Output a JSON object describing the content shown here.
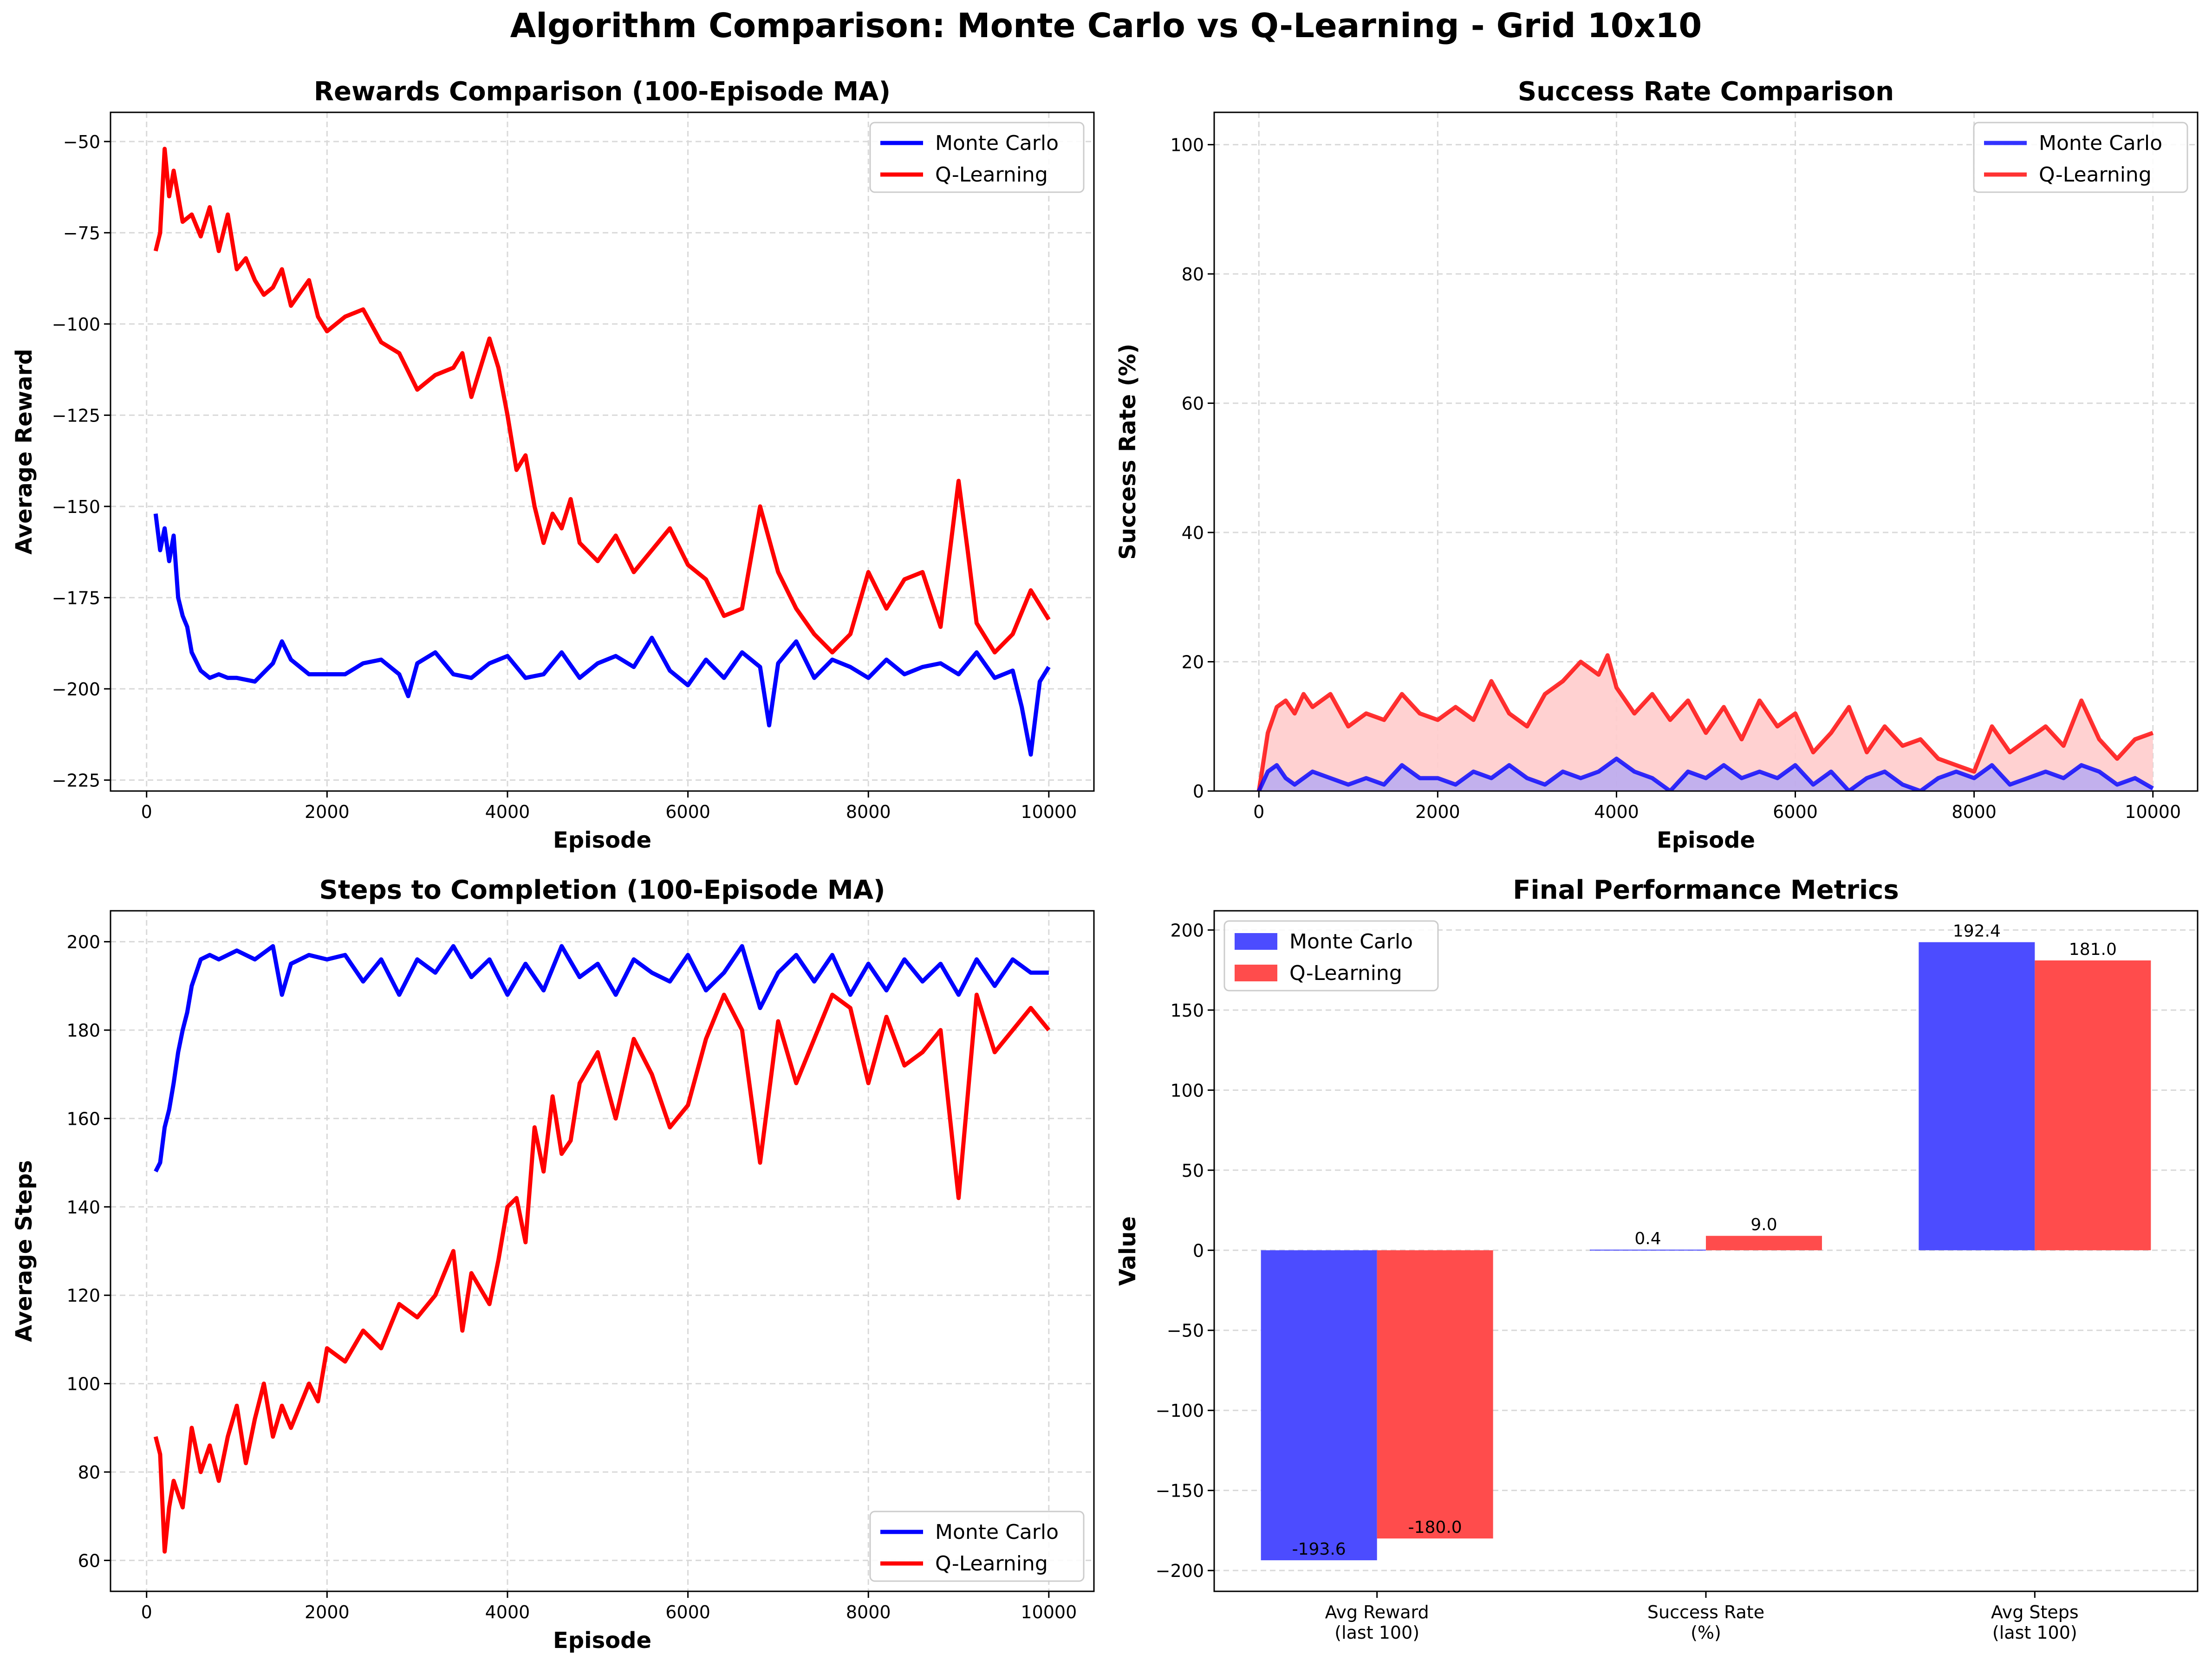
{
  "suptitle": "Algorithm Comparison: Monte Carlo vs Q-Learning - Grid 10x10",
  "colors": {
    "monte_carlo": "#0000ff",
    "q_learning": "#ff0000",
    "grid": "#d9d9d9",
    "fill_q": "#ffcccc",
    "fill_mc": "#9999ff"
  },
  "chart_data": [
    {
      "type": "line",
      "title": "Rewards Comparison (100-Episode MA)",
      "xlabel": "Episode",
      "ylabel": "Average Reward",
      "xlim": [
        -400,
        10500
      ],
      "ylim": [
        -228,
        -42
      ],
      "xticks": [
        0,
        2000,
        4000,
        6000,
        8000,
        10000
      ],
      "yticks": [
        -225,
        -200,
        -175,
        -150,
        -125,
        -100,
        -75,
        -50
      ],
      "ytick_labels": [
        "−225",
        "−200",
        "−175",
        "−150",
        "−125",
        "−100",
        "−75",
        "−50"
      ],
      "grid": true,
      "legend": "top-right",
      "series": [
        {
          "name": "Monte Carlo",
          "color": "#0000ff",
          "x": [
            100,
            150,
            200,
            250,
            300,
            350,
            400,
            450,
            500,
            600,
            700,
            800,
            900,
            1000,
            1200,
            1400,
            1500,
            1600,
            1800,
            2000,
            2200,
            2400,
            2600,
            2800,
            2900,
            3000,
            3200,
            3400,
            3600,
            3800,
            4000,
            4200,
            4400,
            4600,
            4800,
            5000,
            5200,
            5400,
            5600,
            5800,
            6000,
            6200,
            6400,
            6600,
            6800,
            6900,
            7000,
            7200,
            7400,
            7600,
            7800,
            8000,
            8200,
            8400,
            8600,
            8800,
            9000,
            9200,
            9400,
            9600,
            9700,
            9800,
            9900,
            10000
          ],
          "values": [
            -152,
            -162,
            -156,
            -165,
            -158,
            -175,
            -180,
            -183,
            -190,
            -195,
            -197,
            -196,
            -197,
            -197,
            -198,
            -193,
            -187,
            -192,
            -196,
            -196,
            -196,
            -193,
            -192,
            -196,
            -202,
            -193,
            -190,
            -196,
            -197,
            -193,
            -191,
            -197,
            -196,
            -190,
            -197,
            -193,
            -191,
            -194,
            -186,
            -195,
            -199,
            -192,
            -197,
            -190,
            -194,
            -210,
            -193,
            -187,
            -197,
            -192,
            -194,
            -197,
            -192,
            -196,
            -194,
            -193,
            -196,
            -190,
            -197,
            -195,
            -205,
            -218,
            -198,
            -194
          ]
        },
        {
          "name": "Q-Learning",
          "color": "#ff0000",
          "x": [
            100,
            150,
            200,
            250,
            300,
            400,
            500,
            600,
            700,
            800,
            900,
            1000,
            1100,
            1200,
            1300,
            1400,
            1500,
            1600,
            1800,
            1900,
            2000,
            2200,
            2400,
            2600,
            2800,
            3000,
            3200,
            3400,
            3500,
            3600,
            3800,
            3900,
            4000,
            4100,
            4200,
            4300,
            4400,
            4500,
            4600,
            4700,
            4800,
            5000,
            5200,
            5400,
            5600,
            5800,
            6000,
            6200,
            6400,
            6600,
            6800,
            7000,
            7200,
            7400,
            7600,
            7800,
            8000,
            8200,
            8400,
            8600,
            8800,
            9000,
            9100,
            9200,
            9400,
            9600,
            9800,
            10000
          ],
          "values": [
            -80,
            -75,
            -52,
            -65,
            -58,
            -72,
            -70,
            -76,
            -68,
            -80,
            -70,
            -85,
            -82,
            -88,
            -92,
            -90,
            -85,
            -95,
            -88,
            -98,
            -102,
            -98,
            -96,
            -105,
            -108,
            -118,
            -114,
            -112,
            -108,
            -120,
            -104,
            -112,
            -125,
            -140,
            -136,
            -150,
            -160,
            -152,
            -156,
            -148,
            -160,
            -165,
            -158,
            -168,
            -162,
            -156,
            -166,
            -170,
            -180,
            -178,
            -150,
            -168,
            -178,
            -185,
            -190,
            -185,
            -168,
            -178,
            -170,
            -168,
            -183,
            -143,
            -162,
            -182,
            -190,
            -185,
            -173,
            -181
          ]
        }
      ]
    },
    {
      "type": "area",
      "title": "Success Rate Comparison",
      "xlabel": "Episode",
      "ylabel": "Success Rate (%)",
      "xlim": [
        -500,
        10500
      ],
      "ylim": [
        0,
        105
      ],
      "xticks": [
        0,
        2000,
        4000,
        6000,
        8000,
        10000
      ],
      "yticks": [
        0,
        20,
        40,
        60,
        80,
        100
      ],
      "ytick_labels": [
        "0",
        "20",
        "40",
        "60",
        "80",
        "100"
      ],
      "grid": true,
      "legend": "top-right",
      "series": [
        {
          "name": "Monte Carlo",
          "color": "#0000ff",
          "x": [
            0,
            100,
            200,
            300,
            400,
            600,
            800,
            1000,
            1200,
            1400,
            1600,
            1800,
            2000,
            2200,
            2400,
            2600,
            2800,
            3000,
            3200,
            3400,
            3600,
            3800,
            4000,
            4200,
            4400,
            4600,
            4800,
            5000,
            5200,
            5400,
            5600,
            5800,
            6000,
            6200,
            6400,
            6600,
            6800,
            7000,
            7200,
            7400,
            7600,
            7800,
            8000,
            8200,
            8400,
            8600,
            8800,
            9000,
            9200,
            9400,
            9600,
            9800,
            10000
          ],
          "values": [
            0,
            3,
            4,
            2,
            1,
            3,
            2,
            1,
            2,
            1,
            4,
            2,
            2,
            1,
            3,
            2,
            4,
            2,
            1,
            3,
            2,
            3,
            5,
            3,
            2,
            0,
            3,
            2,
            4,
            2,
            3,
            2,
            4,
            1,
            3,
            0,
            2,
            3,
            1,
            0,
            2,
            3,
            2,
            4,
            1,
            2,
            3,
            2,
            4,
            3,
            1,
            2,
            0.4
          ]
        },
        {
          "name": "Q-Learning",
          "color": "#ff0000",
          "x": [
            0,
            100,
            150,
            200,
            300,
            400,
            500,
            600,
            800,
            1000,
            1200,
            1400,
            1600,
            1800,
            2000,
            2200,
            2400,
            2600,
            2800,
            3000,
            3200,
            3400,
            3600,
            3800,
            3900,
            4000,
            4200,
            4400,
            4600,
            4800,
            5000,
            5200,
            5400,
            5600,
            5800,
            6000,
            6200,
            6400,
            6600,
            6800,
            7000,
            7200,
            7400,
            7600,
            7800,
            8000,
            8200,
            8400,
            8600,
            8800,
            9000,
            9200,
            9400,
            9600,
            9800,
            10000
          ],
          "values": [
            0,
            9,
            11,
            13,
            14,
            12,
            15,
            13,
            15,
            10,
            12,
            11,
            15,
            12,
            11,
            13,
            11,
            17,
            12,
            10,
            15,
            17,
            20,
            18,
            21,
            16,
            12,
            15,
            11,
            14,
            9,
            13,
            8,
            14,
            10,
            12,
            6,
            9,
            13,
            6,
            10,
            7,
            8,
            5,
            4,
            3,
            10,
            6,
            8,
            10,
            7,
            14,
            8,
            5,
            8,
            9
          ]
        }
      ]
    },
    {
      "type": "line",
      "title": "Steps to Completion (100-Episode MA)",
      "xlabel": "Episode",
      "ylabel": "Average Steps",
      "xlim": [
        -400,
        10500
      ],
      "ylim": [
        53,
        207
      ],
      "xticks": [
        0,
        2000,
        4000,
        6000,
        8000,
        10000
      ],
      "yticks": [
        60,
        80,
        100,
        120,
        140,
        160,
        180,
        200
      ],
      "ytick_labels": [
        "60",
        "80",
        "100",
        "120",
        "140",
        "160",
        "180",
        "200"
      ],
      "grid": true,
      "legend": "bottom-right",
      "series": [
        {
          "name": "Monte Carlo",
          "color": "#0000ff",
          "x": [
            100,
            150,
            200,
            250,
            300,
            350,
            400,
            450,
            500,
            600,
            700,
            800,
            1000,
            1200,
            1400,
            1500,
            1600,
            1800,
            2000,
            2200,
            2400,
            2600,
            2800,
            3000,
            3200,
            3400,
            3600,
            3800,
            4000,
            4200,
            4400,
            4600,
            4800,
            5000,
            5200,
            5400,
            5600,
            5800,
            6000,
            6200,
            6400,
            6600,
            6800,
            7000,
            7200,
            7400,
            7600,
            7800,
            8000,
            8200,
            8400,
            8600,
            8800,
            9000,
            9200,
            9400,
            9600,
            9800,
            10000
          ],
          "values": [
            148,
            150,
            158,
            162,
            168,
            175,
            180,
            184,
            190,
            196,
            197,
            196,
            198,
            196,
            199,
            188,
            195,
            197,
            196,
            197,
            191,
            196,
            188,
            196,
            193,
            199,
            192,
            196,
            188,
            195,
            189,
            199,
            192,
            195,
            188,
            196,
            193,
            191,
            197,
            189,
            193,
            199,
            185,
            193,
            197,
            191,
            197,
            188,
            195,
            189,
            196,
            191,
            195,
            188,
            196,
            190,
            196,
            193,
            193
          ]
        },
        {
          "name": "Q-Learning",
          "color": "#ff0000",
          "x": [
            100,
            150,
            200,
            250,
            300,
            400,
            500,
            600,
            700,
            800,
            900,
            1000,
            1100,
            1200,
            1300,
            1400,
            1500,
            1600,
            1800,
            1900,
            2000,
            2200,
            2400,
            2600,
            2800,
            3000,
            3200,
            3400,
            3500,
            3600,
            3800,
            3900,
            4000,
            4100,
            4200,
            4300,
            4400,
            4500,
            4600,
            4700,
            4800,
            5000,
            5200,
            5400,
            5600,
            5800,
            6000,
            6200,
            6400,
            6600,
            6800,
            7000,
            7200,
            7400,
            7600,
            7800,
            8000,
            8200,
            8400,
            8600,
            8800,
            9000,
            9100,
            9200,
            9400,
            9600,
            9800,
            10000
          ],
          "values": [
            88,
            84,
            62,
            72,
            78,
            72,
            90,
            80,
            86,
            78,
            88,
            95,
            82,
            92,
            100,
            88,
            95,
            90,
            100,
            96,
            108,
            105,
            112,
            108,
            118,
            115,
            120,
            130,
            112,
            125,
            118,
            128,
            140,
            142,
            132,
            158,
            148,
            165,
            152,
            155,
            168,
            175,
            160,
            178,
            170,
            158,
            163,
            178,
            188,
            180,
            150,
            182,
            168,
            178,
            188,
            185,
            168,
            183,
            172,
            175,
            180,
            142,
            165,
            188,
            175,
            180,
            185,
            180
          ]
        }
      ]
    },
    {
      "type": "bar",
      "title": "Final Performance Metrics",
      "xlabel": "",
      "ylabel": "Value",
      "categories": [
        [
          "Avg Reward",
          "(last 100)"
        ],
        [
          "Success Rate",
          "(%)"
        ],
        [
          "Avg Steps",
          "(last 100)"
        ]
      ],
      "ylim": [
        -213,
        212
      ],
      "yticks": [
        -200,
        -150,
        -100,
        -50,
        0,
        50,
        100,
        150,
        200
      ],
      "ytick_labels": [
        "−200",
        "−150",
        "−100",
        "−50",
        "0",
        "50",
        "100",
        "150",
        "200"
      ],
      "grid": true,
      "legend": "top-left",
      "series": [
        {
          "name": "Monte Carlo",
          "color": "#4c4cff",
          "values": [
            -193.6,
            0.4,
            192.4
          ],
          "labels": [
            "-193.6",
            "0.4",
            "192.4"
          ]
        },
        {
          "name": "Q-Learning",
          "color": "#ff4c4c",
          "values": [
            -180.0,
            9.0,
            181.0
          ],
          "labels": [
            "-180.0",
            "9.0",
            "181.0"
          ]
        }
      ]
    }
  ]
}
